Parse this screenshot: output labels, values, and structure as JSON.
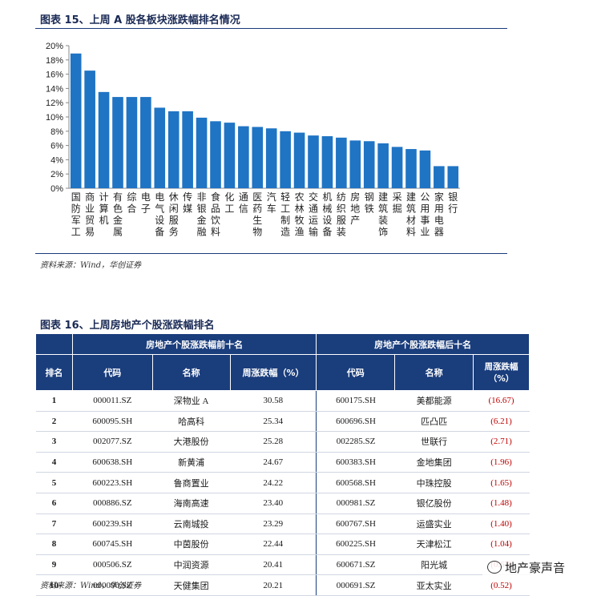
{
  "figure15": {
    "title": "图表 15、上周 A 股各板块涨跌幅排名情况",
    "source": "资料来源：Wind，华创证券",
    "chart_data": {
      "type": "bar",
      "categories": [
        "国防军工",
        "商业贸易",
        "计算机",
        "有色金属",
        "综合",
        "电子",
        "电气设备",
        "休闲服务",
        "传媒",
        "非银金融",
        "食品饮料",
        "化工",
        "通信",
        "医药生物",
        "汽车",
        "轻工制造",
        "农林牧渔",
        "交通运输",
        "机械设备",
        "纺织服装",
        "房地产",
        "钢铁",
        "建筑装饰",
        "采掘",
        "建筑材料",
        "公用事业",
        "家用电器",
        "银行"
      ],
      "values": [
        18.9,
        16.5,
        13.5,
        12.8,
        12.8,
        12.8,
        11.3,
        10.8,
        10.8,
        9.9,
        9.4,
        9.2,
        8.7,
        8.6,
        8.4,
        8.0,
        7.8,
        7.4,
        7.3,
        7.1,
        6.7,
        6.6,
        6.3,
        5.8,
        5.5,
        5.3,
        3.1,
        3.1
      ],
      "ylim": [
        0,
        20
      ],
      "yticks": [
        "0%",
        "2%",
        "4%",
        "6%",
        "8%",
        "10%",
        "12%",
        "14%",
        "16%",
        "18%",
        "20%"
      ],
      "grid": false,
      "color": "#1f74c4"
    }
  },
  "figure16": {
    "title": "图表 16、上周房地产个股涨跌幅排名",
    "source": "资料来源：Wind，华创证券",
    "group_top": "房地产个股涨跌幅前十名",
    "group_bottom": "房地产个股涨跌幅后十名",
    "headers": {
      "rank": "排名",
      "code": "代码",
      "name": "名称",
      "change_top": "周涨跌幅（%）",
      "code2": "代码",
      "name2": "名称",
      "change_bottom": "周涨跌幅（%）"
    },
    "rows": [
      {
        "rank": "1",
        "code": "000011.SZ",
        "name": "深物业 A",
        "change": "30.58",
        "code2": "600175.SH",
        "name2": "美都能源",
        "change2": "(16.67)"
      },
      {
        "rank": "2",
        "code": "600095.SH",
        "name": "哈高科",
        "change": "25.34",
        "code2": "600696.SH",
        "name2": "匹凸匹",
        "change2": "(6.21)"
      },
      {
        "rank": "3",
        "code": "002077.SZ",
        "name": "大港股份",
        "change": "25.28",
        "code2": "002285.SZ",
        "name2": "世联行",
        "change2": "(2.71)"
      },
      {
        "rank": "4",
        "code": "600638.SH",
        "name": "新黄浦",
        "change": "24.67",
        "code2": "600383.SH",
        "name2": "金地集团",
        "change2": "(1.96)"
      },
      {
        "rank": "5",
        "code": "600223.SH",
        "name": "鲁商置业",
        "change": "24.22",
        "code2": "600568.SH",
        "name2": "中珠控股",
        "change2": "(1.65)"
      },
      {
        "rank": "6",
        "code": "000886.SZ",
        "name": "海南高速",
        "change": "23.40",
        "code2": "000981.SZ",
        "name2": "银亿股份",
        "change2": "(1.48)"
      },
      {
        "rank": "7",
        "code": "600239.SH",
        "name": "云南城投",
        "change": "23.29",
        "code2": "600767.SH",
        "name2": "运盛实业",
        "change2": "(1.40)"
      },
      {
        "rank": "8",
        "code": "600745.SH",
        "name": "中茵股份",
        "change": "22.44",
        "code2": "600225.SH",
        "name2": "天津松江",
        "change2": "(1.04)"
      },
      {
        "rank": "9",
        "code": "000506.SZ",
        "name": "中润资源",
        "change": "20.41",
        "code2": "600671.SZ",
        "name2": "阳光城",
        "change2": "(0.67)"
      },
      {
        "rank": "10",
        "code": "000090.SZ",
        "name": "天健集团",
        "change": "20.21",
        "code2": "000691.SZ",
        "name2": "亚太实业",
        "change2": "(0.52)"
      }
    ]
  },
  "watermark": "地产豪声音"
}
